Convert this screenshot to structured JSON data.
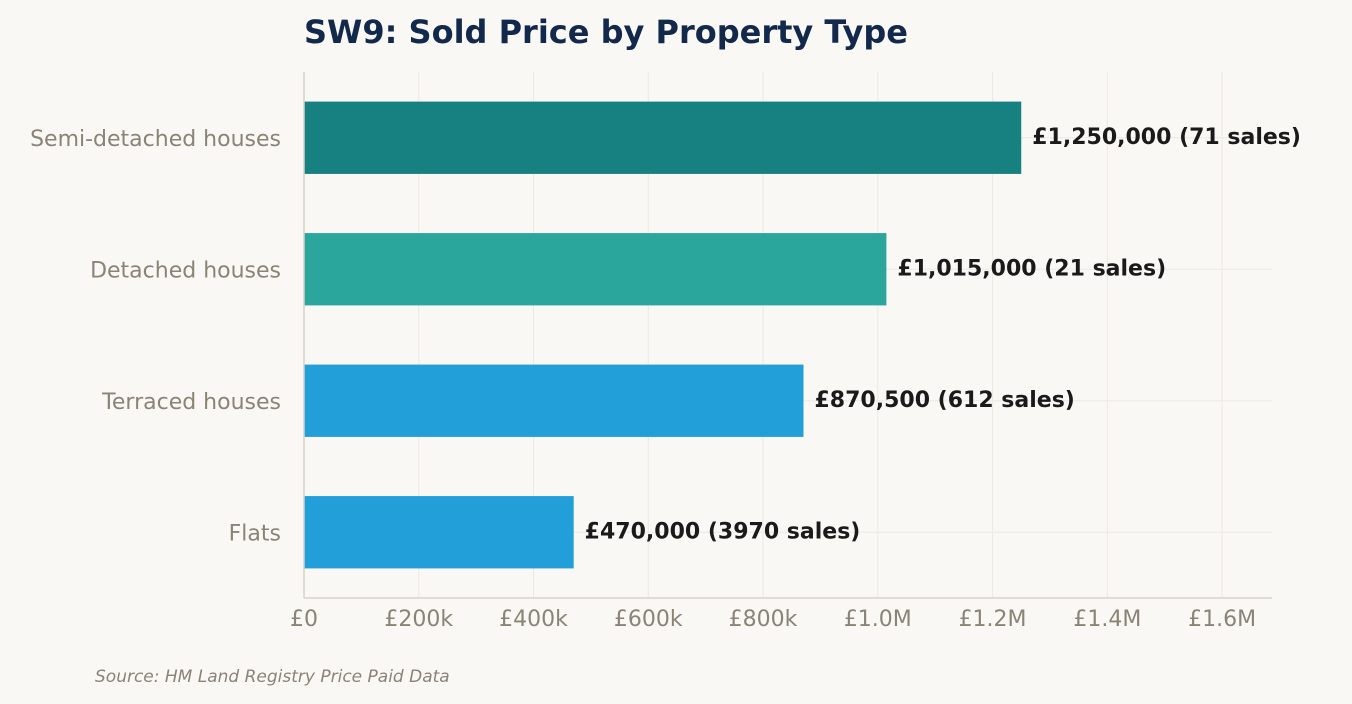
{
  "chart_data": {
    "type": "bar",
    "orientation": "horizontal",
    "title": "SW9: Sold Price by Property Type",
    "categories": [
      "Semi-detached houses",
      "Detached houses",
      "Terraced houses",
      "Flats"
    ],
    "values": [
      1250000,
      1015000,
      870500,
      470000
    ],
    "data_labels": [
      "£1,250,000  (71 sales)",
      "£1,015,000  (21 sales)",
      "£870,500  (612 sales)",
      "£470,000  (3970 sales)"
    ],
    "bar_colors": [
      "#178080",
      "#2ba69c",
      "#229fd9",
      "#229fd9"
    ],
    "xlim": [
      0,
      1687000
    ],
    "x_ticks": [
      0,
      200000,
      400000,
      600000,
      800000,
      1000000,
      1200000,
      1400000,
      1600000
    ],
    "x_tick_labels": [
      "£0",
      "£200k",
      "£400k",
      "£600k",
      "£800k",
      "£1.0M",
      "£1.2M",
      "£1.4M",
      "£1.6M"
    ],
    "grid": true,
    "xlabel": "",
    "ylabel": ""
  },
  "source_note": "Source: HM Land Registry Price Paid Data",
  "colors": {
    "background": "#f9f8f4",
    "title": "#13294b",
    "muted_text": "#8a8477",
    "value_text": "#1a1a1a",
    "grid": "#ece9e1",
    "axis": "#d6d2c8"
  }
}
